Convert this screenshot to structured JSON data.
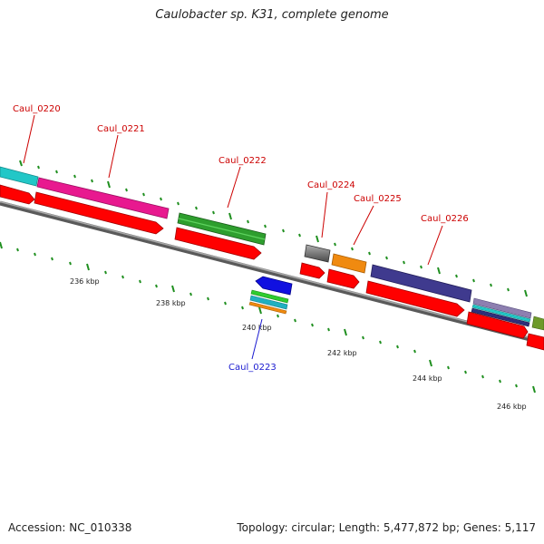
{
  "header": {
    "title": "Caulobacter sp. K31, complete genome"
  },
  "footer": {
    "accession": "Accession: NC_010338",
    "summary": "Topology: circular; Length: 5,477,872 bp; Genes: 5,117"
  },
  "genes": [
    {
      "label": "Caul_0220",
      "strand": "+",
      "feature_color": "#22c7c7",
      "label_color": "#cc0000"
    },
    {
      "label": "Caul_0221",
      "strand": "+",
      "feature_color": "#e8198f",
      "label_color": "#cc0000"
    },
    {
      "label": "Caul_0222",
      "strand": "+",
      "feature_color": "#2e9e2e",
      "label_color": "#cc0000"
    },
    {
      "label": "Caul_0223",
      "strand": "-",
      "feature_color": "#1010e0",
      "label_color": "#1a1ad0"
    },
    {
      "label": "Caul_0224",
      "strand": "+",
      "feature_color": "#6b6b6b",
      "label_color": "#cc0000"
    },
    {
      "label": "Caul_0225",
      "strand": "+",
      "feature_color": "#f08a10",
      "label_color": "#cc0000"
    },
    {
      "label": "Caul_0226",
      "strand": "+",
      "feature_color": "#3f3a8e",
      "label_color": "#cc0000"
    }
  ],
  "ruler": {
    "ticks": [
      "236 kbp",
      "238 kbp",
      "240 kbp",
      "242 kbp",
      "244 kbp",
      "246 kbp"
    ]
  },
  "colors": {
    "cds": "#ff0000",
    "backbone": "#808080",
    "tick": "#1f8f1f"
  }
}
